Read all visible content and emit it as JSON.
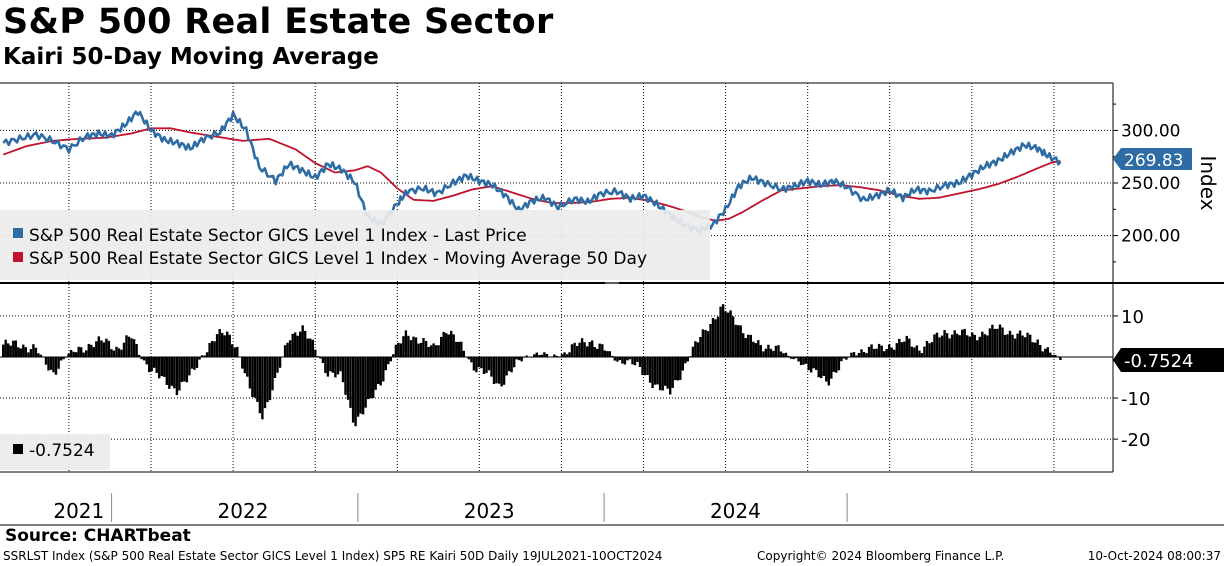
{
  "title": "S&P 500 Real Estate Sector",
  "subtitle": "Kairi 50-Day Moving Average",
  "source": "Source: CHARTbeat",
  "footer": {
    "left": "SSRLST Index (S&P 500 Real Estate Sector GICS Level 1 Index) SP5 RE Kairi 50D  Daily 19JUL2021-10OCT2024",
    "center": "Copyright© 2024 Bloomberg Finance L.P.",
    "right": "10-Oct-2024 08:00:37"
  },
  "colors": {
    "price": "#2e6da4",
    "ma": "#c0122d",
    "kairi": "#000000",
    "badge_price": "#2e6da4",
    "badge_kairi": "#000000",
    "grid": "#000000"
  },
  "chart_data": [
    {
      "type": "line",
      "panel": "price",
      "ylabel": "Index",
      "ylim": [
        155,
        345
      ],
      "yticks": [
        300,
        250,
        200
      ],
      "ytick_labels": [
        "300.00",
        "250.00",
        "200.00"
      ],
      "last_value_label": "269.83",
      "xlim": [
        2021.54,
        2024.93
      ],
      "legend": [
        "S&P 500 Real Estate Sector GICS Level 1 Index - Last Price",
        "S&P 500 Real Estate Sector GICS Level 1 Index - Moving Average 50 Day"
      ],
      "series": [
        {
          "name": "S&P 500 Real Estate Sector GICS Level 1 Index - Last Price",
          "x": [
            2021.55,
            2021.6,
            2021.65,
            2021.7,
            2021.75,
            2021.8,
            2021.84,
            2021.88,
            2021.92,
            2021.96,
            2022.0,
            2022.04,
            2022.08,
            2022.12,
            2022.16,
            2022.21,
            2022.25,
            2022.29,
            2022.33,
            2022.38,
            2022.42,
            2022.46,
            2022.5,
            2022.54,
            2022.58,
            2022.62,
            2022.66,
            2022.7,
            2022.75,
            2022.78,
            2022.83,
            2022.87,
            2022.92,
            2022.96,
            2023.0,
            2023.04,
            2023.08,
            2023.12,
            2023.16,
            2023.2,
            2023.24,
            2023.29,
            2023.33,
            2023.37,
            2023.42,
            2023.46,
            2023.5,
            2023.54,
            2023.58,
            2023.62,
            2023.67,
            2023.71,
            2023.75,
            2023.79,
            2023.83,
            2023.87,
            2023.92,
            2023.96,
            2024.0,
            2024.04,
            2024.08,
            2024.12,
            2024.17,
            2024.21,
            2024.25,
            2024.29,
            2024.33,
            2024.37,
            2024.42,
            2024.46,
            2024.5,
            2024.54,
            2024.58,
            2024.62,
            2024.66,
            2024.7,
            2024.73,
            2024.77
          ],
          "values": [
            288,
            292,
            296,
            290,
            282,
            294,
            297,
            295,
            305,
            318,
            300,
            291,
            288,
            283,
            292,
            298,
            315,
            300,
            265,
            252,
            268,
            262,
            255,
            268,
            263,
            251,
            218,
            211,
            230,
            242,
            245,
            240,
            250,
            257,
            252,
            248,
            238,
            224,
            233,
            236,
            227,
            235,
            232,
            240,
            242,
            235,
            238,
            230,
            220,
            211,
            205,
            210,
            225,
            247,
            255,
            250,
            244,
            247,
            252,
            248,
            252,
            246,
            234,
            238,
            243,
            236,
            244,
            242,
            248,
            250,
            258,
            266,
            271,
            279,
            286,
            283,
            276,
            270
          ]
        },
        {
          "name": "S&P 500 Real Estate Sector GICS Level 1 Index - Moving Average 50 Day",
          "x": [
            2021.55,
            2021.62,
            2021.7,
            2021.78,
            2021.86,
            2021.94,
            2022.0,
            2022.06,
            2022.12,
            2022.2,
            2022.28,
            2022.36,
            2022.44,
            2022.5,
            2022.56,
            2022.62,
            2022.66,
            2022.7,
            2022.75,
            2022.8,
            2022.86,
            2022.92,
            2022.98,
            2023.04,
            2023.1,
            2023.16,
            2023.22,
            2023.28,
            2023.34,
            2023.4,
            2023.46,
            2023.52,
            2023.58,
            2023.63,
            2023.68,
            2023.72,
            2023.76,
            2023.8,
            2023.86,
            2023.92,
            2023.98,
            2024.04,
            2024.1,
            2024.16,
            2024.22,
            2024.28,
            2024.34,
            2024.4,
            2024.46,
            2024.52,
            2024.58,
            2024.64,
            2024.7,
            2024.74,
            2024.77
          ],
          "values": [
            277,
            285,
            290,
            292,
            293,
            297,
            302,
            302,
            298,
            294,
            290,
            292,
            282,
            269,
            260,
            262,
            266,
            260,
            245,
            234,
            233,
            238,
            244,
            247,
            241,
            235,
            231,
            231,
            232,
            235,
            236,
            233,
            228,
            223,
            217,
            214,
            216,
            222,
            233,
            243,
            245,
            247,
            248,
            246,
            243,
            238,
            235,
            236,
            240,
            244,
            249,
            256,
            264,
            269,
            271
          ]
        }
      ]
    },
    {
      "type": "bar",
      "panel": "kairi",
      "ylim": [
        -28,
        18
      ],
      "yticks": [
        10,
        -10,
        -20
      ],
      "ytick_labels": [
        "10",
        "-10",
        "-20"
      ],
      "last_value_label": "-0.7524",
      "xlim": [
        2021.54,
        2024.93
      ],
      "legend": [
        "-0.7524"
      ],
      "x_categories": [
        "2021",
        "2022",
        "2023",
        "2024"
      ],
      "x": [
        2021.55,
        2021.6,
        2021.65,
        2021.7,
        2021.74,
        2021.78,
        2021.82,
        2021.86,
        2021.9,
        2021.94,
        2021.97,
        2022.0,
        2022.04,
        2022.08,
        2022.12,
        2022.16,
        2022.2,
        2022.23,
        2022.26,
        2022.3,
        2022.34,
        2022.38,
        2022.42,
        2022.46,
        2022.5,
        2022.54,
        2022.58,
        2022.62,
        2022.66,
        2022.7,
        2022.74,
        2022.78,
        2022.82,
        2022.86,
        2022.9,
        2022.94,
        2022.98,
        2023.02,
        2023.06,
        2023.1,
        2023.14,
        2023.18,
        2023.22,
        2023.26,
        2023.3,
        2023.34,
        2023.38,
        2023.42,
        2023.46,
        2023.5,
        2023.54,
        2023.58,
        2023.62,
        2023.66,
        2023.7,
        2023.74,
        2023.78,
        2023.82,
        2023.86,
        2023.9,
        2023.94,
        2023.98,
        2024.02,
        2024.06,
        2024.1,
        2024.14,
        2024.18,
        2024.22,
        2024.26,
        2024.3,
        2024.34,
        2024.38,
        2024.42,
        2024.46,
        2024.5,
        2024.54,
        2024.58,
        2024.62,
        2024.66,
        2024.7,
        2024.74,
        2024.77
      ],
      "values": [
        3,
        3,
        2,
        -4,
        0,
        2,
        3,
        4,
        2,
        5,
        0,
        -3,
        -6,
        -8,
        -5,
        1,
        5,
        6,
        3,
        -8,
        -14,
        -6,
        5,
        7,
        2,
        -4,
        -5,
        -16,
        -12,
        -6,
        1,
        6,
        4,
        2,
        7,
        3,
        -2,
        -4,
        -7,
        -3,
        0,
        1,
        0,
        1,
        3,
        4,
        2,
        -1,
        -1,
        -4,
        -7,
        -9,
        -3,
        3,
        8,
        12,
        9,
        5,
        2,
        3,
        0,
        -1,
        -4,
        -6,
        -2,
        1,
        2,
        2,
        3,
        4,
        2,
        4,
        6,
        6,
        5,
        6,
        7,
        6,
        5,
        4,
        1,
        -0.75
      ]
    }
  ]
}
